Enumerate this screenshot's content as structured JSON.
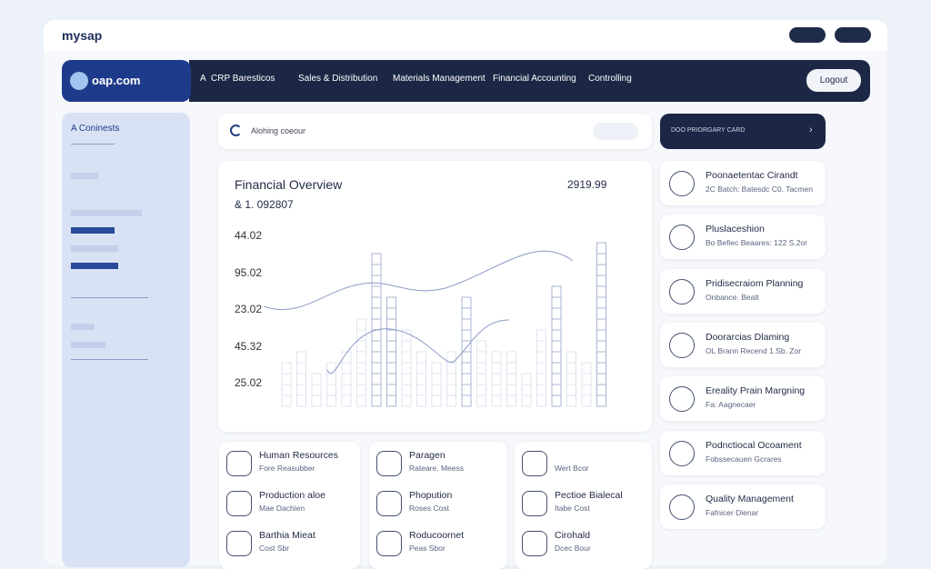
{
  "header": {
    "title": "mysap"
  },
  "nav": {
    "brand": "oap.com",
    "items": [
      "A",
      "CRP Baresticos",
      "Sales & Distribution",
      "Materials Management",
      "Financial Accounting",
      "Controlling"
    ],
    "logout": "Logout"
  },
  "sidebar": {
    "title": "A Coninests"
  },
  "search": {
    "placeholder": "Alohing coeour"
  },
  "promo": {
    "label": "DOO PRIORGARY CARD",
    "arrow": "›"
  },
  "overview": {
    "title": "Financial Overview",
    "subtitle": "& 1. 092807",
    "figure": "2919.99",
    "axis_labels": [
      "44.02",
      "95.02",
      "23.02",
      "45.32",
      "25.02"
    ]
  },
  "right_cards": [
    {
      "title": "Poonaetentac Cirandt",
      "sub": "2C Batch: Batesdc C0. Tacmen"
    },
    {
      "title": "Pluslaceshion",
      "sub": "Bo Befiec Beaares: 122 S.2or"
    },
    {
      "title": "Pridisecraiom Planning",
      "sub": "Onbance. Bealt"
    },
    {
      "title": "Doorarcias Dlaming",
      "sub": "OL Brann Recend 1.Sb. Zor"
    },
    {
      "title": "Ereality Prain Margning",
      "sub": "Fa: Aagnecaer"
    },
    {
      "title": "Podnctiocal Ocoament",
      "sub": "Fobssecauen Gcrares"
    },
    {
      "title": "Quality Management",
      "sub": "Fafnicer Dienar"
    }
  ],
  "bottom_cards": [
    [
      {
        "title": "Human Resources",
        "sub": "Fore Reasubber"
      },
      {
        "title": "Production aloe",
        "sub": "Mae Dachien"
      },
      {
        "title": "Barthia Mieat",
        "sub": "Cost Sbr"
      }
    ],
    [
      {
        "title": "Paragen",
        "sub": "Rateare. Meess"
      },
      {
        "title": "Phopution",
        "sub": "Roses Cost"
      },
      {
        "title": "Roducoornet",
        "sub": "Peas Sbor"
      }
    ],
    [
      {
        "title": "",
        "sub": "Wert Bcor"
      },
      {
        "title": "Pectioe Bialecal",
        "sub": "Itabe Cost"
      },
      {
        "title": "Cirohald",
        "sub": "Dcec Bour"
      }
    ]
  ]
}
